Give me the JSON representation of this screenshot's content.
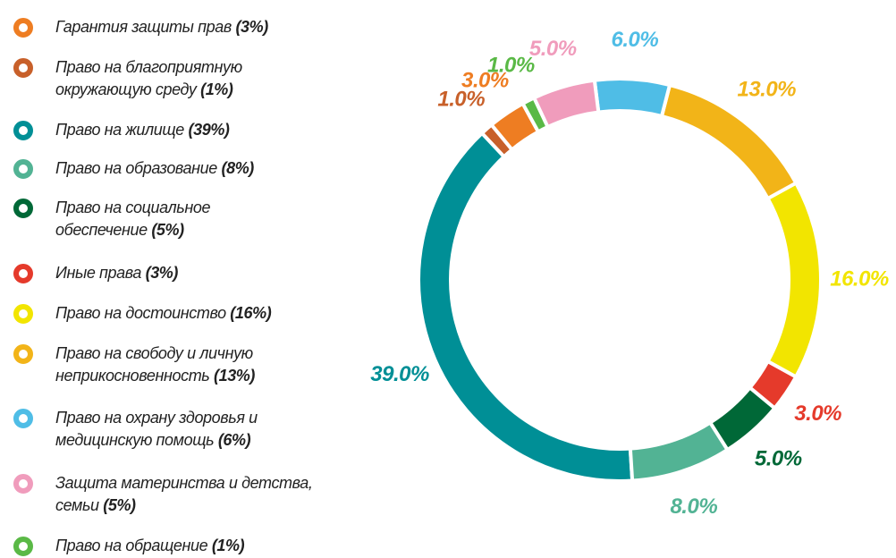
{
  "chart_data": {
    "type": "donut",
    "categories": [
      "Гарантия защиты прав",
      "Право на благоприятную окружающую среду",
      "Право на жилище",
      "Право на образование",
      "Право на социальное обеспечение",
      "Иные права",
      "Право на достоинство",
      "Право на свободу и личную неприкосновенность",
      "Право на охрану здоровья и медицинскую помощь",
      "Защита материнства и детства, семьи",
      "Право на обращение"
    ],
    "values": [
      3,
      1,
      39,
      8,
      5,
      3,
      16,
      13,
      6,
      5,
      1
    ],
    "value_labels": [
      "3.0%",
      "1.0%",
      "39.0%",
      "8.0%",
      "5.0%",
      "3.0%",
      "16.0%",
      "13.0%",
      "6.0%",
      "5.0%",
      "1.0%"
    ],
    "legend_value_labels": [
      "(3%)",
      "(1%)",
      "(39%)",
      "(8%)",
      "(5%)",
      "(3%)",
      "(16%)",
      "(13%)",
      "(6%)",
      "(5%)",
      "(1%)"
    ],
    "colors": [
      "#ee7d22",
      "#c8602a",
      "#008f96",
      "#52b394",
      "#006837",
      "#e53a2b",
      "#f2e500",
      "#f2b418",
      "#4fbde6",
      "#f09cbc",
      "#5ab946"
    ]
  }
}
